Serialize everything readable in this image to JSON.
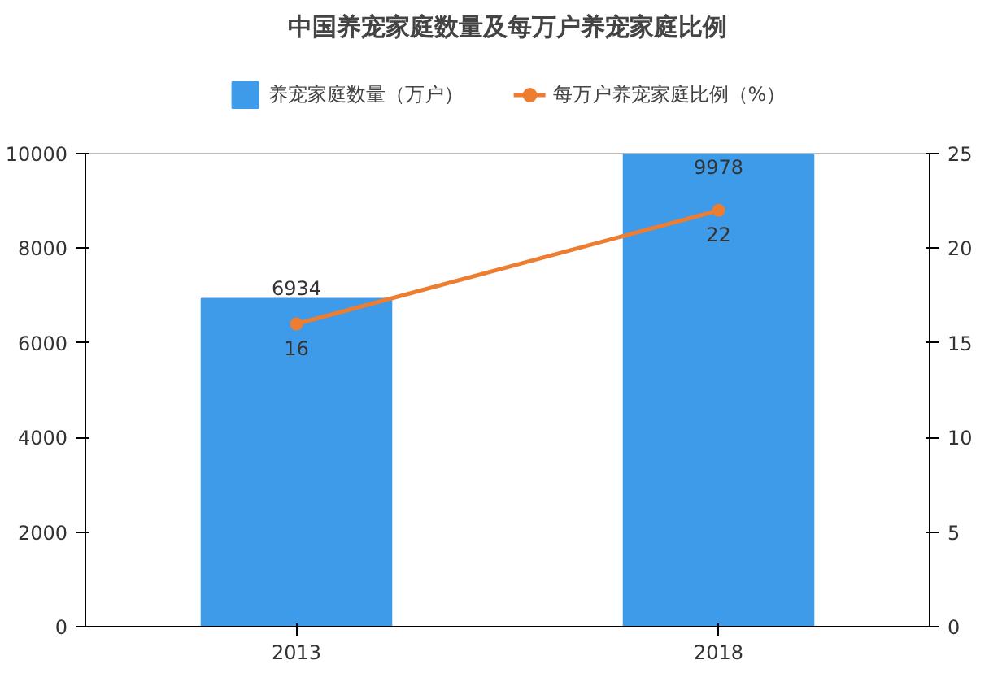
{
  "chart_data": {
    "type": "bar",
    "title": "中国养宠家庭数量及每万户养宠家庭比例",
    "categories": [
      "2013",
      "2018"
    ],
    "series": [
      {
        "name": "养宠家庭数量（万户）",
        "color": "#3d9be9",
        "values": [
          6934,
          9978
        ]
      },
      {
        "name": "每万户养宠家庭比例（%）",
        "type": "line",
        "axis": "y2",
        "color": "#ed7d31",
        "values": [
          16,
          22
        ]
      }
    ],
    "ylim": [
      0,
      10000
    ],
    "yticks": [
      0,
      2000,
      4000,
      6000,
      8000,
      10000
    ],
    "y2lim": [
      0,
      25
    ],
    "y2ticks": [
      0,
      5,
      10,
      15,
      20,
      25
    ],
    "data_labels": true,
    "legend": "top",
    "marker": "circle",
    "grid": false
  }
}
